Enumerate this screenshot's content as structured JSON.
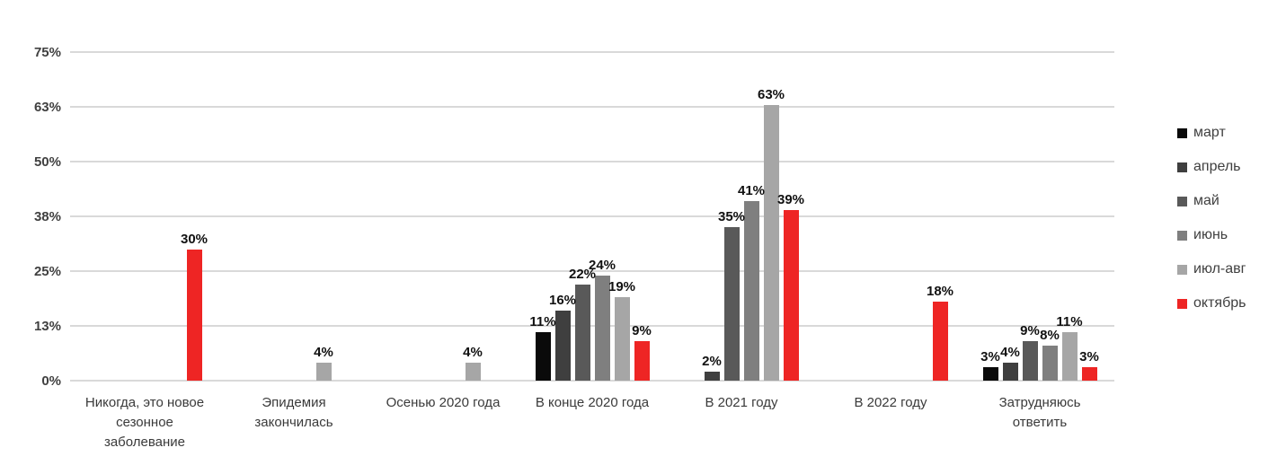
{
  "chart_data": {
    "type": "bar",
    "title": "",
    "xlabel": "",
    "ylabel": "",
    "ylim": [
      0,
      75
    ],
    "grid": true,
    "legend_position": "right",
    "value_label_suffix": "%",
    "yticks": [
      {
        "label": "0%",
        "value": 0
      },
      {
        "label": "13%",
        "value": 12.5
      },
      {
        "label": "25%",
        "value": 25
      },
      {
        "label": "38%",
        "value": 37.5
      },
      {
        "label": "50%",
        "value": 50
      },
      {
        "label": "63%",
        "value": 62.5
      },
      {
        "label": "75%",
        "value": 75
      }
    ],
    "categories": [
      "Никогда, это новое сезонное заболевание",
      "Эпидемия закончилась",
      "Осенью 2020 года",
      "В конце 2020 года",
      "В 2021 году",
      "В 2022 году",
      "Затрудняюсь ответить"
    ],
    "series": [
      {
        "name": "март",
        "color": "#0a0a0a",
        "values": [
          0,
          0,
          0,
          11,
          0,
          0,
          3
        ]
      },
      {
        "name": "апрель",
        "color": "#3f3f3f",
        "values": [
          0,
          0,
          0,
          16,
          2,
          0,
          4
        ]
      },
      {
        "name": "май",
        "color": "#595959",
        "values": [
          0,
          0,
          0,
          22,
          35,
          0,
          9
        ]
      },
      {
        "name": "июнь",
        "color": "#7f7f7f",
        "values": [
          0,
          0,
          0,
          24,
          41,
          0,
          8
        ]
      },
      {
        "name": "июл-авг",
        "color": "#a6a6a6",
        "values": [
          0,
          4,
          4,
          19,
          63,
          0,
          11
        ]
      },
      {
        "name": "октябрь",
        "color": "#ee2524",
        "values": [
          30,
          0,
          0,
          9,
          39,
          18,
          3
        ]
      }
    ]
  },
  "colors": {
    "gridline": "#d9d9d9",
    "axis_text": "#404040",
    "category_text": "#3a3a3a",
    "value_text": "#111111",
    "background": "#ffffff"
  }
}
